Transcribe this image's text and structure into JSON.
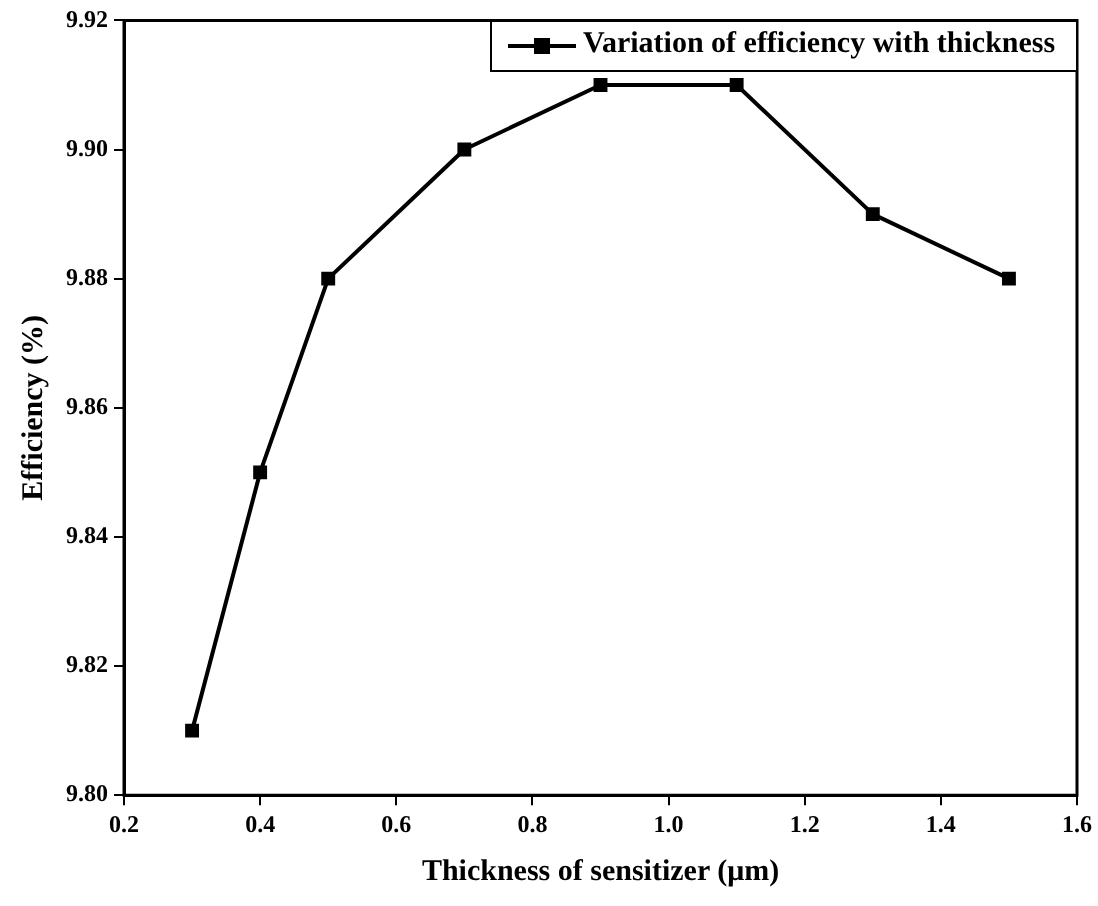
{
  "chart_data": {
    "type": "line",
    "xlabel": "Thickness of sensitizer (μm)",
    "ylabel": "Efficiency (%)",
    "x": [
      0.3,
      0.4,
      0.5,
      0.7,
      0.9,
      1.1,
      1.3,
      1.5
    ],
    "series": [
      {
        "name": "Variation of efficiency with thickness",
        "color": "#000000",
        "values": [
          9.81,
          9.85,
          9.88,
          9.9,
          9.91,
          9.91,
          9.89,
          9.88
        ]
      }
    ],
    "xlim": [
      0.2,
      1.6
    ],
    "xticks": [
      0.2,
      0.4,
      0.6,
      0.8,
      {
        "value": 1.0,
        "label": "1.0"
      },
      1.2,
      1.4,
      1.6
    ],
    "ylim": [
      9.8,
      9.92
    ],
    "yticks": [
      {
        "value": 9.8,
        "label": "9.80"
      },
      {
        "value": 9.82,
        "label": "9.82"
      },
      {
        "value": 9.84,
        "label": "9.84"
      },
      {
        "value": 9.86,
        "label": "9.86"
      },
      {
        "value": 9.88,
        "label": "9.88"
      },
      {
        "value": 9.9,
        "label": "9.90"
      },
      {
        "value": 9.92,
        "label": "9.92"
      }
    ],
    "grid": false,
    "legend": "top right",
    "marker": "square",
    "line_style": "solid"
  }
}
